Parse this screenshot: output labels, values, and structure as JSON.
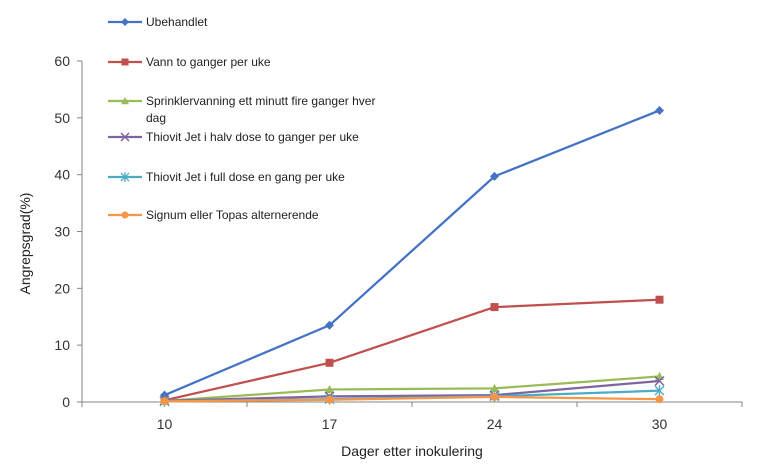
{
  "chart_data": {
    "type": "line",
    "categories": [
      "10",
      "17",
      "24",
      "30"
    ],
    "xlabel": "Dager etter inokulering",
    "ylabel": "Angrepsgrad(%)",
    "ylim": [
      0,
      60
    ],
    "yticks": [
      0,
      10,
      20,
      30,
      40,
      50,
      60
    ],
    "grid": false,
    "legend_position": "top",
    "series": [
      {
        "name": "Ubehandlet",
        "values": [
          1.2,
          13.5,
          39.7,
          51.3
        ],
        "color": "#4472C4",
        "marker": "diamond"
      },
      {
        "name": "Vann to ganger per uke",
        "values": [
          0.3,
          6.9,
          16.7,
          18.0
        ],
        "color": "#C0504D",
        "marker": "square"
      },
      {
        "name": "Sprinklervanning  ett minutt fire ganger hver dag",
        "values": [
          0.2,
          2.2,
          2.4,
          4.5
        ],
        "color": "#9BBB59",
        "marker": "triangle"
      },
      {
        "name": "Thiovit Jet i halv dose to ganger per uke",
        "values": [
          0.2,
          1.0,
          1.2,
          3.7
        ],
        "color": "#8064A2",
        "marker": "x"
      },
      {
        "name": "Thiovit Jet i full dose en gang per uke",
        "values": [
          0.1,
          0.5,
          1.0,
          2.0
        ],
        "color": "#4BACC6",
        "marker": "star"
      },
      {
        "name": "Signum eller Topas alternerende",
        "values": [
          0.1,
          0.4,
          0.9,
          0.5
        ],
        "color": "#F79646",
        "marker": "circle"
      }
    ]
  }
}
